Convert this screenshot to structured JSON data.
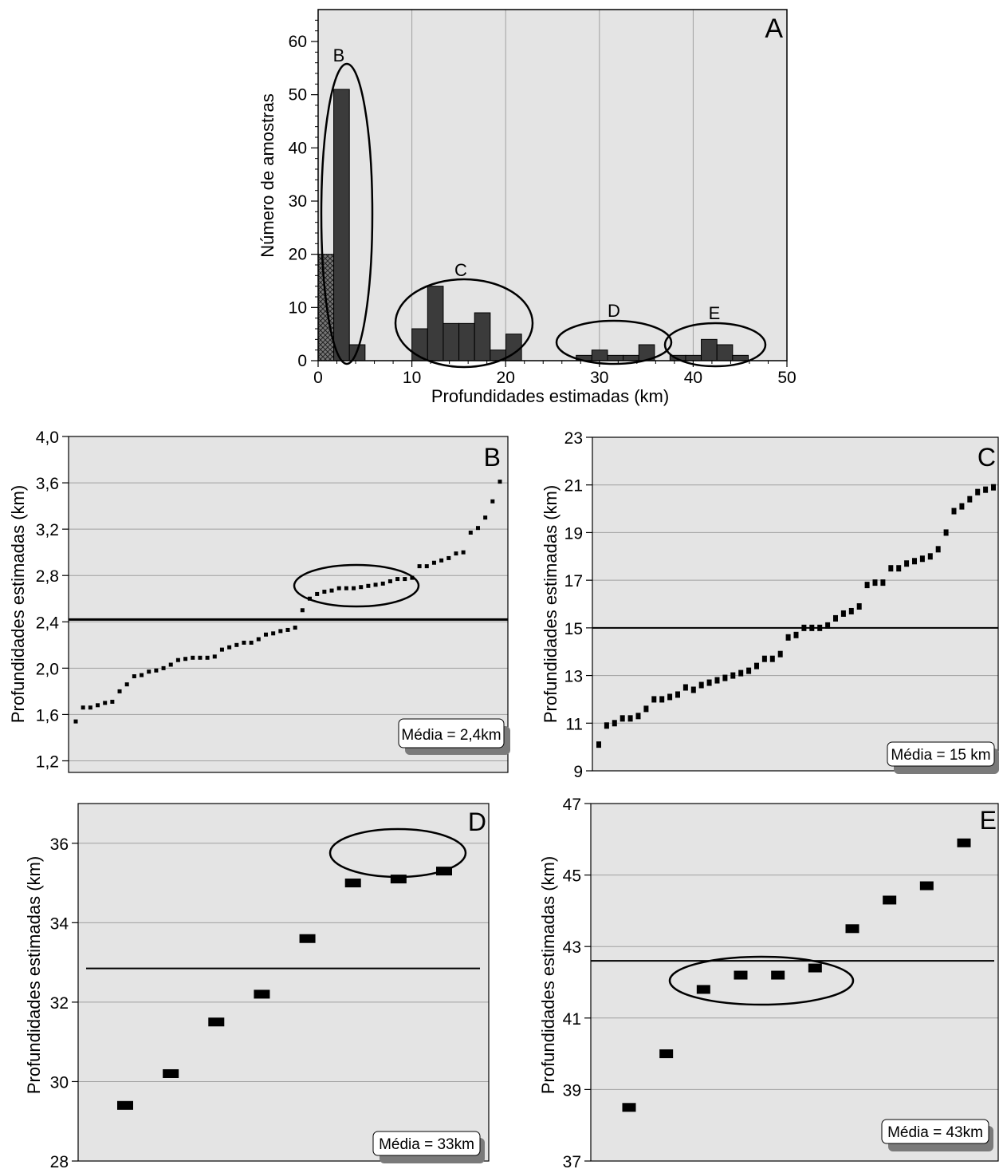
{
  "panel_a": {
    "letter": "A",
    "cluster_labels": [
      "B",
      "C",
      "D",
      "E"
    ],
    "chart_data": {
      "type": "bar",
      "xlabel": "Profundidades estimadas (km)",
      "ylabel": "Número de amostras",
      "xlim": [
        0,
        50
      ],
      "ylim": [
        0,
        66
      ],
      "xticks": [
        "0",
        "10",
        "20",
        "30",
        "40",
        "50"
      ],
      "yticks": [
        "0",
        "10",
        "20",
        "30",
        "40",
        "50",
        "60"
      ],
      "grid": "vertical",
      "bin_width": 1.67,
      "series": [
        {
          "style": "hatched",
          "x": [
            0.84
          ],
          "values": [
            20
          ]
        },
        {
          "style": "solid",
          "x": [
            2.5,
            4.17,
            10.84,
            12.51,
            14.18,
            15.85,
            17.52,
            19.19,
            20.86,
            28.36,
            30.03,
            31.7,
            33.37,
            35.04,
            38.36,
            40.03,
            41.7,
            43.37,
            45.04
          ],
          "values": [
            51,
            3,
            6,
            14,
            7,
            7,
            9,
            2,
            5,
            1,
            2,
            1,
            1,
            3,
            1,
            1,
            4,
            3,
            1
          ]
        }
      ]
    }
  },
  "panel_b": {
    "letter": "B",
    "mean_label": "Média = 2,4km",
    "chart_data": {
      "type": "scatter",
      "ylabel": "Profundidades estimadas (km)",
      "ylim": [
        1.1,
        4.0
      ],
      "yticks": [
        "1,2",
        "1,6",
        "2,0",
        "2,4",
        "2,8",
        "3,2",
        "3,6",
        "4,0"
      ],
      "mean": 2.42,
      "grid": "horizontal",
      "values": [
        1.54,
        1.66,
        1.66,
        1.68,
        1.7,
        1.71,
        1.8,
        1.86,
        1.93,
        1.94,
        1.97,
        1.98,
        2.0,
        2.03,
        2.07,
        2.08,
        2.09,
        2.09,
        2.09,
        2.1,
        2.16,
        2.18,
        2.2,
        2.22,
        2.22,
        2.25,
        2.29,
        2.3,
        2.32,
        2.33,
        2.35,
        2.5,
        2.6,
        2.64,
        2.66,
        2.67,
        2.69,
        2.69,
        2.69,
        2.7,
        2.71,
        2.72,
        2.73,
        2.75,
        2.77,
        2.77,
        2.78,
        2.88,
        2.88,
        2.91,
        2.93,
        2.95,
        2.99,
        3.0,
        3.17,
        3.21,
        3.3,
        3.44,
        3.61
      ]
    }
  },
  "panel_c": {
    "letter": "C",
    "mean_label": "Média = 15 km",
    "chart_data": {
      "type": "scatter",
      "ylabel": "Profundidades estimadas (km)",
      "ylim": [
        9,
        23
      ],
      "yticks": [
        "9",
        "11",
        "13",
        "15",
        "17",
        "19",
        "21",
        "23"
      ],
      "mean": 15,
      "grid": "horizontal",
      "values": [
        10.1,
        10.9,
        11.0,
        11.2,
        11.2,
        11.3,
        11.6,
        12.0,
        12.0,
        12.1,
        12.2,
        12.5,
        12.4,
        12.6,
        12.7,
        12.8,
        12.9,
        13.0,
        13.1,
        13.2,
        13.4,
        13.7,
        13.7,
        13.9,
        14.6,
        14.7,
        15.0,
        15.0,
        15.0,
        15.1,
        15.4,
        15.6,
        15.7,
        15.9,
        16.8,
        16.9,
        16.9,
        17.5,
        17.5,
        17.7,
        17.8,
        17.9,
        18.0,
        18.3,
        19.0,
        19.9,
        20.1,
        20.4,
        20.7,
        20.8,
        20.9
      ]
    }
  },
  "panel_d": {
    "letter": "D",
    "mean_label": "Média = 33km",
    "chart_data": {
      "type": "scatter",
      "ylabel": "Profundidades estimadas (km)",
      "ylim": [
        28,
        37
      ],
      "yticks": [
        "28",
        "30",
        "32",
        "34",
        "36"
      ],
      "mean": 32.85,
      "grid": "horizontal",
      "values": [
        29.4,
        30.2,
        31.5,
        32.2,
        33.6,
        35.0,
        35.1,
        35.3
      ]
    }
  },
  "panel_e": {
    "letter": "E",
    "mean_label": "Média = 43km",
    "chart_data": {
      "type": "scatter",
      "ylabel": "Profundidades estimadas (km)",
      "ylim": [
        37,
        47
      ],
      "yticks": [
        "37",
        "39",
        "41",
        "43",
        "45",
        "47"
      ],
      "mean": 42.6,
      "grid": "horizontal",
      "values": [
        38.5,
        40.0,
        41.8,
        42.2,
        42.2,
        42.4,
        43.5,
        44.3,
        44.7,
        45.9
      ]
    }
  },
  "colors": {
    "plot_bg": "#e4e4e4",
    "bar_fill": "#3b3b3b",
    "hatch_fill": "#777777",
    "grid": "#a0a0a0",
    "marker": "#000000",
    "badge_shadow": "#7a7a7a"
  }
}
